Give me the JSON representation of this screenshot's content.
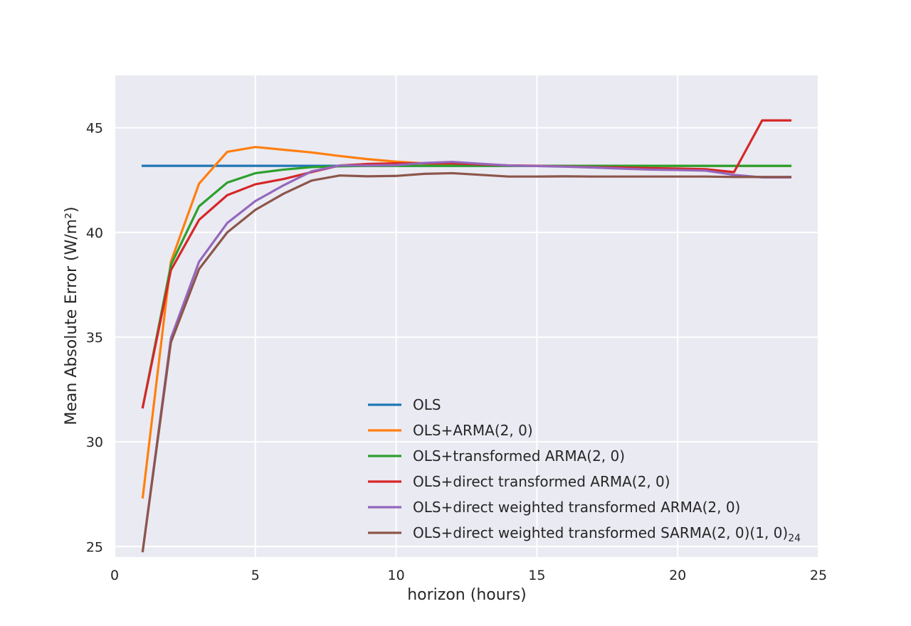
{
  "chart_data": {
    "type": "line",
    "title": "",
    "xlabel": "horizon (hours)",
    "ylabel": "Mean Absolute Error (W/m²)",
    "xlim": [
      0,
      25
    ],
    "ylim": [
      24.5,
      47.5
    ],
    "xticks": [
      "0",
      "5",
      "10",
      "15",
      "20",
      "25"
    ],
    "yticks": [
      "25",
      "30",
      "35",
      "40",
      "45"
    ],
    "grid": true,
    "legend_position": "lower-center",
    "x": [
      1,
      2,
      3,
      4,
      5,
      6,
      7,
      8,
      9,
      10,
      11,
      12,
      13,
      14,
      15,
      16,
      17,
      18,
      19,
      20,
      21,
      22,
      23,
      24
    ],
    "series": [
      {
        "name": "OLS",
        "color": "#1f77b4",
        "values": [
          43.18,
          43.18,
          43.18,
          43.18,
          43.18,
          43.18,
          43.18,
          43.18,
          43.18,
          43.18,
          43.18,
          43.18,
          43.18,
          43.18,
          43.18,
          43.18,
          43.18,
          43.18,
          43.18,
          43.18,
          43.18,
          43.18,
          43.18,
          43.18
        ]
      },
      {
        "name": "OLS+ARMA",
        "name_suffix": "(2, 0)",
        "color": "#ff7f0e",
        "values": [
          27.35,
          38.6,
          42.33,
          43.85,
          44.08,
          43.95,
          43.82,
          43.65,
          43.5,
          43.38,
          43.3,
          43.27,
          43.23,
          43.2,
          43.18,
          43.18,
          43.18,
          43.18,
          43.18,
          43.18,
          43.18,
          43.18,
          43.18,
          43.18
        ]
      },
      {
        "name": "OLS+transformed ARMA",
        "name_suffix": "(2, 0)",
        "color": "#2ca02c",
        "values": [
          31.65,
          38.45,
          41.25,
          42.38,
          42.83,
          43.0,
          43.12,
          43.16,
          43.18,
          43.18,
          43.18,
          43.18,
          43.18,
          43.18,
          43.18,
          43.18,
          43.18,
          43.18,
          43.18,
          43.18,
          43.18,
          43.18,
          43.18,
          43.18
        ]
      },
      {
        "name": "OLS+direct transformed ARMA",
        "name_suffix": "(2, 0)",
        "color": "#d62728",
        "values": [
          31.65,
          38.2,
          40.6,
          41.78,
          42.3,
          42.55,
          42.88,
          43.2,
          43.27,
          43.3,
          43.3,
          43.3,
          43.25,
          43.2,
          43.18,
          43.15,
          43.12,
          43.1,
          43.07,
          43.05,
          43.02,
          42.88,
          45.35,
          45.35
        ]
      },
      {
        "name": "OLS+direct weighted transformed ARMA",
        "name_suffix": "(2, 0)",
        "color": "#9467bd",
        "values": [
          24.8,
          34.95,
          38.6,
          40.45,
          41.5,
          42.25,
          42.92,
          43.2,
          43.2,
          43.22,
          43.32,
          43.37,
          43.28,
          43.2,
          43.17,
          43.14,
          43.1,
          43.05,
          43.0,
          42.98,
          42.95,
          42.75,
          42.63,
          42.63
        ]
      },
      {
        "name": "OLS+direct weighted transformed SARMA",
        "name_suffix": "(2, 0)(1, 0)",
        "name_subscript": "24",
        "color": "#8c564b",
        "values": [
          24.78,
          34.75,
          38.25,
          40.0,
          41.08,
          41.85,
          42.48,
          42.72,
          42.68,
          42.7,
          42.8,
          42.83,
          42.75,
          42.67,
          42.67,
          42.68,
          42.67,
          42.67,
          42.67,
          42.67,
          42.67,
          42.65,
          42.65,
          42.65
        ]
      }
    ]
  },
  "style": {
    "plot_background": "#eaeaf2",
    "grid_color": "#ffffff",
    "text_color": "#262626"
  }
}
